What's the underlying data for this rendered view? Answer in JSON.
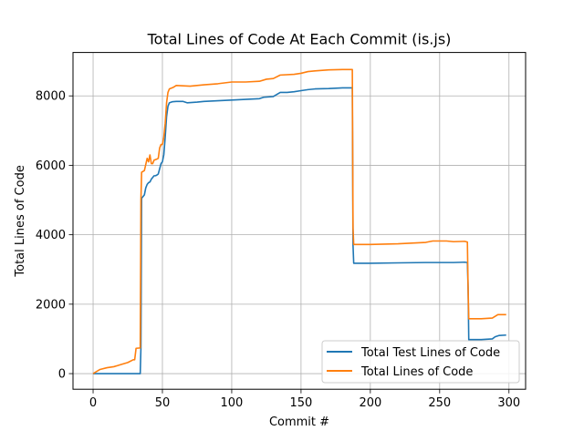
{
  "chart_data": {
    "type": "line",
    "title": "Total Lines of Code At Each Commit (is.js)",
    "xlabel": "Commit #",
    "ylabel": "Total Lines of Code",
    "xlim": [
      -14.5,
      312
    ],
    "ylim": [
      -450,
      9250
    ],
    "xticks": [
      0,
      50,
      100,
      150,
      200,
      250,
      300
    ],
    "yticks": [
      0,
      2000,
      4000,
      6000,
      8000
    ],
    "xtick_labels": [
      "0",
      "50",
      "100",
      "150",
      "200",
      "250",
      "300"
    ],
    "ytick_labels": [
      "0",
      "2000",
      "4000",
      "6000",
      "8000"
    ],
    "grid": true,
    "legend_position": "lower right",
    "series": [
      {
        "name": "Total Test Lines of Code",
        "color": "#1f77b4",
        "points": [
          [
            0,
            0
          ],
          [
            5,
            0
          ],
          [
            10,
            0
          ],
          [
            20,
            0
          ],
          [
            30,
            0
          ],
          [
            34,
            0
          ],
          [
            34.5,
            750
          ],
          [
            35,
            5050
          ],
          [
            36,
            5100
          ],
          [
            37,
            5150
          ],
          [
            38,
            5350
          ],
          [
            39,
            5450
          ],
          [
            40,
            5500
          ],
          [
            41,
            5520
          ],
          [
            42,
            5600
          ],
          [
            43,
            5650
          ],
          [
            44,
            5700
          ],
          [
            45,
            5700
          ],
          [
            46,
            5720
          ],
          [
            47,
            5750
          ],
          [
            48,
            5900
          ],
          [
            49,
            6050
          ],
          [
            50,
            6100
          ],
          [
            51,
            6300
          ],
          [
            52,
            6800
          ],
          [
            53,
            7400
          ],
          [
            54,
            7700
          ],
          [
            55,
            7800
          ],
          [
            57,
            7830
          ],
          [
            60,
            7840
          ],
          [
            65,
            7840
          ],
          [
            68,
            7800
          ],
          [
            75,
            7820
          ],
          [
            80,
            7840
          ],
          [
            90,
            7860
          ],
          [
            100,
            7880
          ],
          [
            110,
            7900
          ],
          [
            120,
            7920
          ],
          [
            123,
            7960
          ],
          [
            130,
            7980
          ],
          [
            135,
            8100
          ],
          [
            140,
            8100
          ],
          [
            145,
            8120
          ],
          [
            150,
            8150
          ],
          [
            155,
            8180
          ],
          [
            160,
            8200
          ],
          [
            170,
            8210
          ],
          [
            180,
            8230
          ],
          [
            187,
            8230
          ],
          [
            187.5,
            3700
          ],
          [
            188,
            3180
          ],
          [
            200,
            3180
          ],
          [
            220,
            3190
          ],
          [
            240,
            3200
          ],
          [
            260,
            3200
          ],
          [
            268,
            3210
          ],
          [
            270,
            3200
          ],
          [
            270.5,
            2500
          ],
          [
            271,
            980
          ],
          [
            280,
            980
          ],
          [
            288,
            1000
          ],
          [
            290,
            1060
          ],
          [
            293,
            1100
          ],
          [
            298,
            1110
          ]
        ]
      },
      {
        "name": "Total Lines of Code",
        "color": "#ff7f0e",
        "points": [
          [
            0,
            0
          ],
          [
            2,
            50
          ],
          [
            5,
            120
          ],
          [
            10,
            170
          ],
          [
            15,
            200
          ],
          [
            20,
            260
          ],
          [
            25,
            320
          ],
          [
            29,
            400
          ],
          [
            30,
            400
          ],
          [
            31,
            730
          ],
          [
            34,
            740
          ],
          [
            34.5,
            5000
          ],
          [
            35,
            5800
          ],
          [
            37,
            5850
          ],
          [
            39,
            6200
          ],
          [
            40,
            6100
          ],
          [
            41,
            6300
          ],
          [
            42,
            6050
          ],
          [
            43,
            6050
          ],
          [
            44,
            6150
          ],
          [
            46,
            6180
          ],
          [
            47,
            6200
          ],
          [
            48,
            6500
          ],
          [
            49,
            6600
          ],
          [
            50,
            6600
          ],
          [
            51,
            6800
          ],
          [
            52,
            7200
          ],
          [
            53,
            7800
          ],
          [
            54,
            8100
          ],
          [
            55,
            8200
          ],
          [
            58,
            8250
          ],
          [
            60,
            8300
          ],
          [
            70,
            8280
          ],
          [
            75,
            8300
          ],
          [
            80,
            8320
          ],
          [
            90,
            8350
          ],
          [
            100,
            8400
          ],
          [
            110,
            8400
          ],
          [
            120,
            8420
          ],
          [
            125,
            8480
          ],
          [
            130,
            8500
          ],
          [
            135,
            8600
          ],
          [
            145,
            8620
          ],
          [
            150,
            8650
          ],
          [
            155,
            8700
          ],
          [
            160,
            8720
          ],
          [
            170,
            8750
          ],
          [
            180,
            8760
          ],
          [
            187,
            8760
          ],
          [
            187.5,
            4200
          ],
          [
            188,
            3720
          ],
          [
            200,
            3720
          ],
          [
            220,
            3740
          ],
          [
            230,
            3760
          ],
          [
            240,
            3780
          ],
          [
            245,
            3820
          ],
          [
            255,
            3820
          ],
          [
            260,
            3800
          ],
          [
            268,
            3810
          ],
          [
            270,
            3790
          ],
          [
            270.5,
            2500
          ],
          [
            271,
            1580
          ],
          [
            280,
            1580
          ],
          [
            288,
            1600
          ],
          [
            290,
            1650
          ],
          [
            292,
            1700
          ],
          [
            298,
            1700
          ]
        ]
      }
    ]
  }
}
